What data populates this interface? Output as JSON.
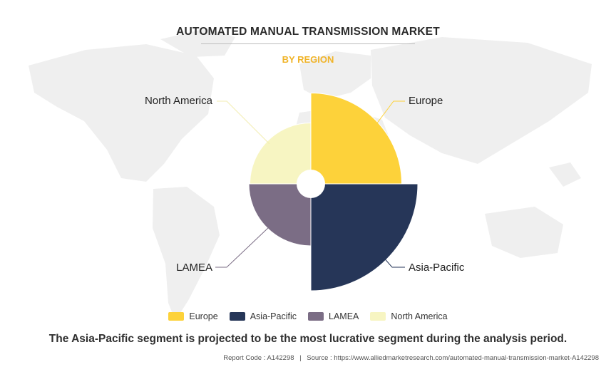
{
  "header": {
    "title": "AUTOMATED MANUAL TRANSMISSION MARKET",
    "subtitle": "BY REGION"
  },
  "chart_data": {
    "type": "pie",
    "variant": "polar-area (rose) with center hole",
    "categories": [
      "Europe",
      "Asia-Pacific",
      "LAMEA",
      "North America"
    ],
    "values": [
      0.85,
      1.0,
      0.58,
      0.57
    ],
    "value_note": "",
    "colors": [
      "#fdd23a",
      "#263658",
      "#7b6d85",
      "#f7f5c2"
    ],
    "legend_position": "bottom"
  },
  "takeaway": "The Asia-Pacific segment is projected to be the most lucrative segment during the analysis period.",
  "footer": {
    "report_code": "Report Code : A142298",
    "separator": "|",
    "source": "Source : https://www.alliedmarketresearch.com/automated-manual-transmission-market-A142298"
  }
}
